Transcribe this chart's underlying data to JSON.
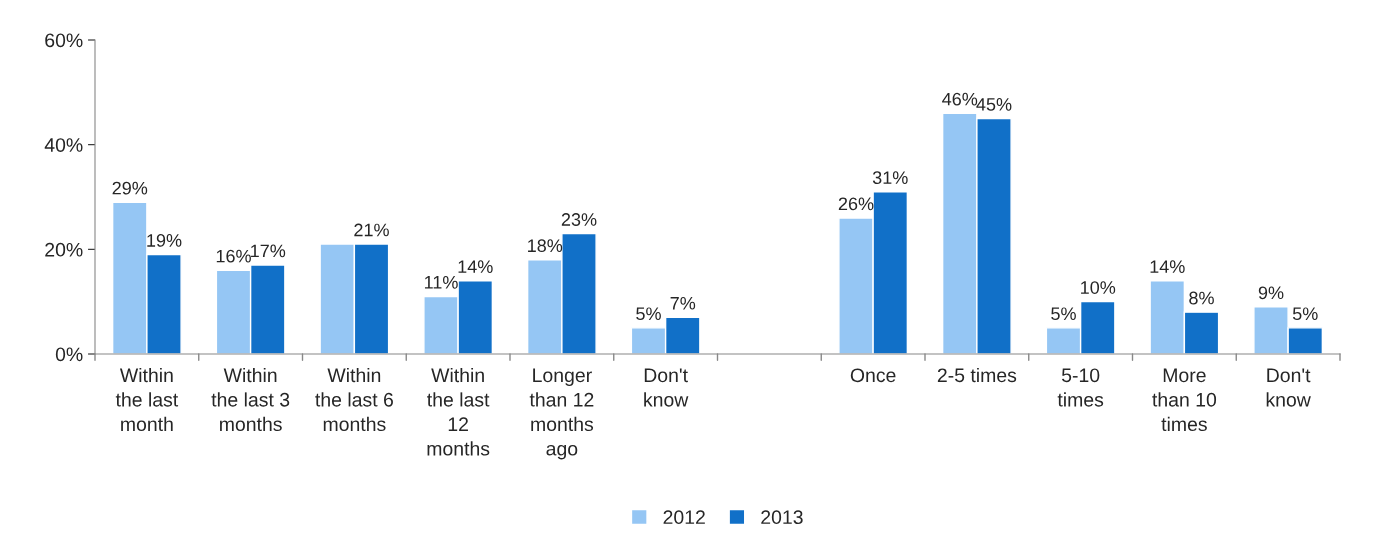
{
  "chart_data": {
    "type": "bar",
    "categories": [
      "Within\nthe last\nmonth",
      "Within\nthe last 3\nmonths",
      "Within\nthe last 6\nmonths",
      "Within\nthe last\n12\nmonths",
      "Longer\nthan 12\nmonths\nago",
      "Don't\nknow",
      null,
      "Once",
      "2-5 times",
      "5-10\ntimes",
      "More\nthan 10\ntimes",
      "Don't\nknow"
    ],
    "series": [
      {
        "name": "2012",
        "color": "#95c6f4",
        "values": [
          29,
          16,
          21,
          11,
          18,
          5,
          null,
          26,
          46,
          5,
          14,
          9
        ],
        "value_labels": [
          "29%",
          "16%",
          null,
          "11%",
          "18%",
          "5%",
          null,
          "26%",
          "46%",
          "5%",
          "14%",
          "9%"
        ]
      },
      {
        "name": "2013",
        "color": "#1170c8",
        "values": [
          19,
          17,
          21,
          14,
          23,
          7,
          null,
          31,
          45,
          10,
          8,
          5
        ],
        "value_labels": [
          "19%",
          "17%",
          "21%",
          "14%",
          "23%",
          "7%",
          null,
          "31%",
          "45%",
          "10%",
          "8%",
          "5%"
        ]
      }
    ],
    "ylim": [
      0,
      60
    ],
    "yticks": [
      {
        "value": 0,
        "label": "0%"
      },
      {
        "value": 20,
        "label": "20%"
      },
      {
        "value": 40,
        "label": "40%"
      },
      {
        "value": 60,
        "label": "60%"
      }
    ],
    "legend": "bottom",
    "grid": false
  }
}
